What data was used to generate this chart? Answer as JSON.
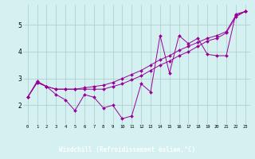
{
  "xlabel": "Windchill (Refroidissement éolien,°C)",
  "x_values": [
    0,
    1,
    2,
    3,
    4,
    5,
    6,
    7,
    8,
    9,
    10,
    11,
    12,
    13,
    14,
    15,
    16,
    17,
    18,
    19,
    20,
    21,
    22,
    23
  ],
  "line1": [
    2.3,
    2.9,
    2.7,
    2.4,
    2.2,
    1.8,
    2.4,
    2.3,
    1.9,
    2.0,
    1.5,
    1.6,
    2.8,
    2.5,
    4.6,
    3.2,
    4.6,
    4.3,
    4.5,
    3.9,
    3.85,
    3.85,
    5.4,
    5.5
  ],
  "line2": [
    2.3,
    2.85,
    2.7,
    2.6,
    2.6,
    2.6,
    2.6,
    2.6,
    2.6,
    2.7,
    2.8,
    2.95,
    3.1,
    3.3,
    3.5,
    3.65,
    3.85,
    4.0,
    4.2,
    4.4,
    4.5,
    4.7,
    5.3,
    5.5
  ],
  "line3": [
    2.3,
    2.85,
    2.7,
    2.6,
    2.6,
    2.6,
    2.65,
    2.7,
    2.75,
    2.85,
    3.0,
    3.15,
    3.3,
    3.5,
    3.7,
    3.85,
    4.05,
    4.2,
    4.35,
    4.5,
    4.6,
    4.75,
    5.35,
    5.5
  ],
  "line_color": "#990099",
  "bg_color": "#d4f0f0",
  "grid_color": "#aacccc",
  "label_bar_color": "#880088",
  "ylim": [
    1.3,
    5.75
  ],
  "yticks": [
    2,
    3,
    4,
    5
  ],
  "xlim": [
    -0.5,
    23.5
  ],
  "xticks": [
    0,
    1,
    2,
    3,
    4,
    5,
    6,
    7,
    8,
    9,
    10,
    11,
    12,
    13,
    14,
    15,
    16,
    17,
    18,
    19,
    20,
    21,
    22,
    23
  ]
}
